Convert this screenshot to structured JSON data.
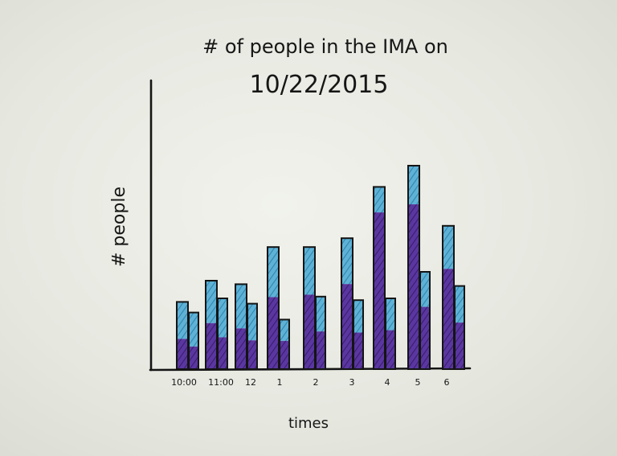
{
  "chart_data": {
    "type": "bar",
    "title_line1": "# of people in the IMA on",
    "title_line2": "10/22/2015",
    "xlabel": "times",
    "ylabel": "# people",
    "categories": [
      "10:00",
      "11:00",
      "12",
      "1",
      "2",
      "3",
      "4",
      "5",
      "6"
    ],
    "series": [
      {
        "values": [
          38,
          50,
          48,
          69,
          69,
          74,
          103,
          115,
          81
        ]
      },
      {
        "values": [
          32,
          40,
          37,
          28,
          41,
          39,
          40,
          55,
          47
        ]
      }
    ],
    "segments": {
      "lower_fraction": [
        [
          0.45,
          0.4
        ],
        [
          0.52,
          0.45
        ],
        [
          0.48,
          0.44
        ],
        [
          0.59,
          0.57
        ],
        [
          0.61,
          0.52
        ],
        [
          0.65,
          0.53
        ],
        [
          0.86,
          0.55
        ],
        [
          0.81,
          0.64
        ],
        [
          0.7,
          0.56
        ]
      ]
    },
    "ylim": [
      0,
      115
    ],
    "colors": {
      "lower": "#4e2a86",
      "upper": "#3f9ac3",
      "outline": "#141414",
      "ink": "#161616"
    }
  }
}
